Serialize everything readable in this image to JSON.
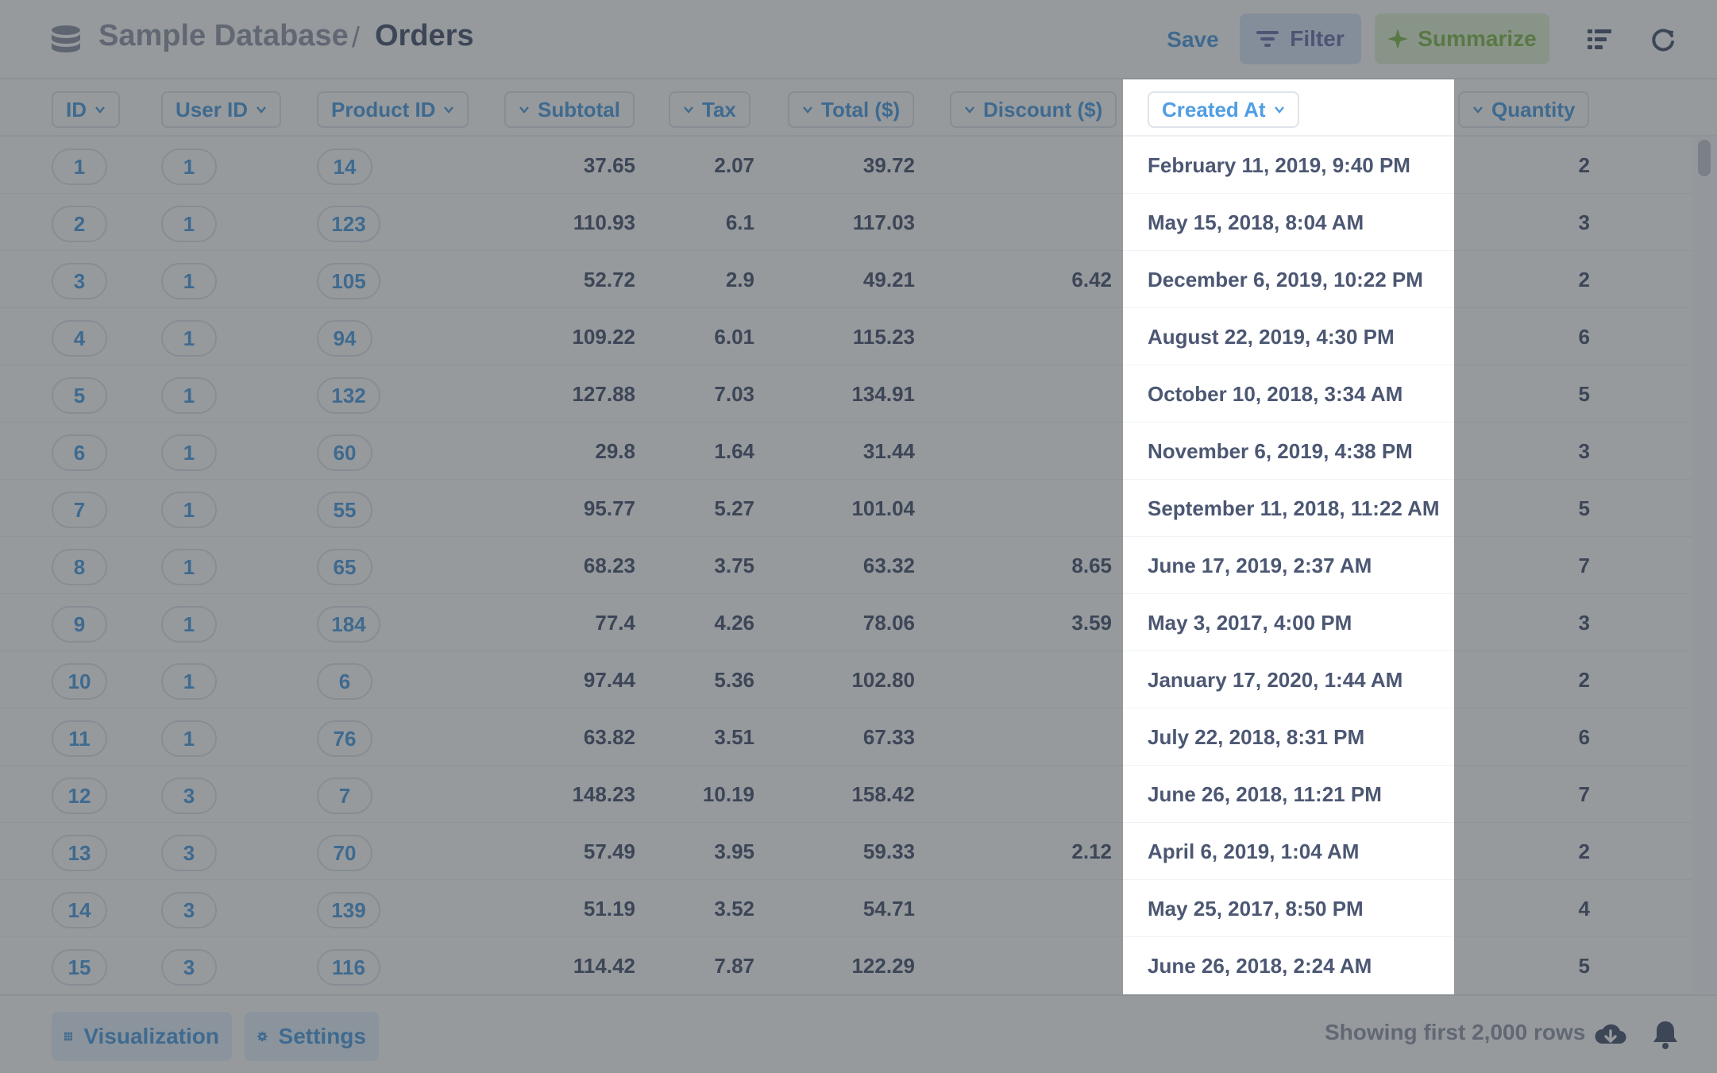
{
  "header": {
    "database": "Sample Database",
    "separator": "/",
    "table": "Orders",
    "save_label": "Save",
    "filter_label": "Filter",
    "summarize_label": "Summarize"
  },
  "columns": [
    {
      "label": "ID"
    },
    {
      "label": "User ID"
    },
    {
      "label": "Product ID"
    },
    {
      "label": "Subtotal"
    },
    {
      "label": "Tax"
    },
    {
      "label": "Total ($)"
    },
    {
      "label": "Discount ($)"
    },
    {
      "label": "Created At"
    },
    {
      "label": "Quantity"
    }
  ],
  "rows": [
    {
      "id": "1",
      "user_id": "1",
      "product_id": "14",
      "subtotal": "37.65",
      "tax": "2.07",
      "total": "39.72",
      "discount": "",
      "created_at": "February 11, 2019, 9:40 PM",
      "quantity": "2"
    },
    {
      "id": "2",
      "user_id": "1",
      "product_id": "123",
      "subtotal": "110.93",
      "tax": "6.1",
      "total": "117.03",
      "discount": "",
      "created_at": "May 15, 2018, 8:04 AM",
      "quantity": "3"
    },
    {
      "id": "3",
      "user_id": "1",
      "product_id": "105",
      "subtotal": "52.72",
      "tax": "2.9",
      "total": "49.21",
      "discount": "6.42",
      "created_at": "December 6, 2019, 10:22 PM",
      "quantity": "2"
    },
    {
      "id": "4",
      "user_id": "1",
      "product_id": "94",
      "subtotal": "109.22",
      "tax": "6.01",
      "total": "115.23",
      "discount": "",
      "created_at": "August 22, 2019, 4:30 PM",
      "quantity": "6"
    },
    {
      "id": "5",
      "user_id": "1",
      "product_id": "132",
      "subtotal": "127.88",
      "tax": "7.03",
      "total": "134.91",
      "discount": "",
      "created_at": "October 10, 2018, 3:34 AM",
      "quantity": "5"
    },
    {
      "id": "6",
      "user_id": "1",
      "product_id": "60",
      "subtotal": "29.8",
      "tax": "1.64",
      "total": "31.44",
      "discount": "",
      "created_at": "November 6, 2019, 4:38 PM",
      "quantity": "3"
    },
    {
      "id": "7",
      "user_id": "1",
      "product_id": "55",
      "subtotal": "95.77",
      "tax": "5.27",
      "total": "101.04",
      "discount": "",
      "created_at": "September 11, 2018, 11:22 AM",
      "quantity": "5"
    },
    {
      "id": "8",
      "user_id": "1",
      "product_id": "65",
      "subtotal": "68.23",
      "tax": "3.75",
      "total": "63.32",
      "discount": "8.65",
      "created_at": "June 17, 2019, 2:37 AM",
      "quantity": "7"
    },
    {
      "id": "9",
      "user_id": "1",
      "product_id": "184",
      "subtotal": "77.4",
      "tax": "4.26",
      "total": "78.06",
      "discount": "3.59",
      "created_at": "May 3, 2017, 4:00 PM",
      "quantity": "3"
    },
    {
      "id": "10",
      "user_id": "1",
      "product_id": "6",
      "subtotal": "97.44",
      "tax": "5.36",
      "total": "102.80",
      "discount": "",
      "created_at": "January 17, 2020, 1:44 AM",
      "quantity": "2"
    },
    {
      "id": "11",
      "user_id": "1",
      "product_id": "76",
      "subtotal": "63.82",
      "tax": "3.51",
      "total": "67.33",
      "discount": "",
      "created_at": "July 22, 2018, 8:31 PM",
      "quantity": "6"
    },
    {
      "id": "12",
      "user_id": "3",
      "product_id": "7",
      "subtotal": "148.23",
      "tax": "10.19",
      "total": "158.42",
      "discount": "",
      "created_at": "June 26, 2018, 11:21 PM",
      "quantity": "7"
    },
    {
      "id": "13",
      "user_id": "3",
      "product_id": "70",
      "subtotal": "57.49",
      "tax": "3.95",
      "total": "59.33",
      "discount": "2.12",
      "created_at": "April 6, 2019, 1:04 AM",
      "quantity": "2"
    },
    {
      "id": "14",
      "user_id": "3",
      "product_id": "139",
      "subtotal": "51.19",
      "tax": "3.52",
      "total": "54.71",
      "discount": "",
      "created_at": "May 25, 2017, 8:50 PM",
      "quantity": "4"
    },
    {
      "id": "15",
      "user_id": "3",
      "product_id": "116",
      "subtotal": "114.42",
      "tax": "7.87",
      "total": "122.29",
      "discount": "",
      "created_at": "June 26, 2018, 2:24 AM",
      "quantity": "5"
    }
  ],
  "footer": {
    "visualization_label": "Visualization",
    "settings_label": "Settings",
    "row_count": "Showing first 2,000 rows"
  },
  "icons": {
    "database": "database-icon",
    "filter": "filter-icon",
    "summarize": "sparkle-icon",
    "editor": "notebook-icon",
    "refresh": "refresh-icon",
    "visualization": "grid-icon",
    "settings": "gear-icon",
    "download": "download-icon",
    "alert": "bell-icon"
  },
  "colors": {
    "brand": "#509ee3",
    "filter": "#7172ad",
    "summarize": "#84bb4c",
    "text": "#4c5773",
    "muted": "#949aab"
  }
}
